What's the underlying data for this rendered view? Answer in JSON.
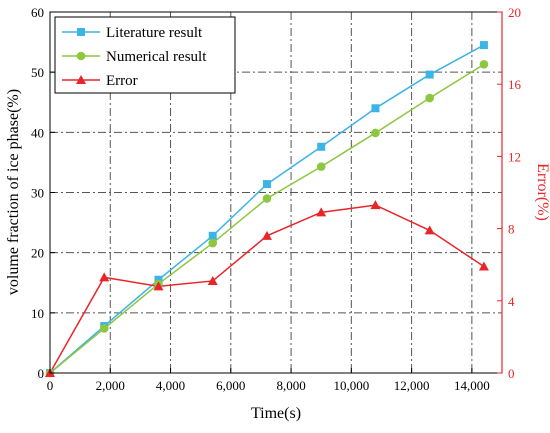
{
  "chart_data": {
    "type": "line",
    "xlabel": "Time(s)",
    "ylabel_left": "volume fraction of ice phase(%)",
    "ylabel_right": "Error(%)",
    "xlim": [
      0,
      15000
    ],
    "ylim_left": [
      0,
      60
    ],
    "ylim_right": [
      0,
      20
    ],
    "x_ticks": [
      0,
      2000,
      4000,
      6000,
      8000,
      10000,
      12000,
      14000
    ],
    "x_tick_labels": [
      "0",
      "2,000",
      "4,000",
      "6,000",
      "8,000",
      "10,000",
      "12,000",
      "14,000"
    ],
    "y_left_ticks": [
      0,
      10,
      20,
      30,
      40,
      50,
      60
    ],
    "y_left_tick_labels": [
      "0",
      "10",
      "20",
      "30",
      "40",
      "50",
      "60"
    ],
    "y_right_ticks": [
      0,
      4,
      8,
      12,
      16,
      20
    ],
    "y_right_tick_labels": [
      "0",
      "4",
      "8",
      "12",
      "16",
      "20"
    ],
    "grid": true,
    "legend_position": "top-left",
    "series": [
      {
        "name": "Literature result",
        "axis": "left",
        "color": "#3cb4e5",
        "marker": "square",
        "x": [
          0,
          1800,
          3600,
          5400,
          7200,
          9000,
          10800,
          12600,
          14400
        ],
        "y": [
          0,
          7.8,
          15.5,
          22.8,
          31.4,
          37.6,
          44.0,
          49.6,
          54.5
        ]
      },
      {
        "name": "Numerical result",
        "axis": "left",
        "color": "#8dc63f",
        "marker": "circle",
        "x": [
          0,
          1800,
          3600,
          5400,
          7200,
          9000,
          10800,
          12600,
          14400
        ],
        "y": [
          0,
          7.4,
          14.8,
          21.6,
          29.0,
          34.3,
          39.9,
          45.7,
          51.3
        ]
      },
      {
        "name": "Error",
        "axis": "right",
        "color": "#e8262a",
        "marker": "triangle",
        "x": [
          0,
          1800,
          3600,
          5400,
          7200,
          9000,
          10800,
          12600,
          14400
        ],
        "y": [
          0,
          5.3,
          4.8,
          5.1,
          7.6,
          8.9,
          9.3,
          7.9,
          5.9
        ]
      }
    ]
  },
  "colors": {
    "axis": "#000000",
    "right_axis": "#e8262a",
    "grid": "#555555"
  }
}
